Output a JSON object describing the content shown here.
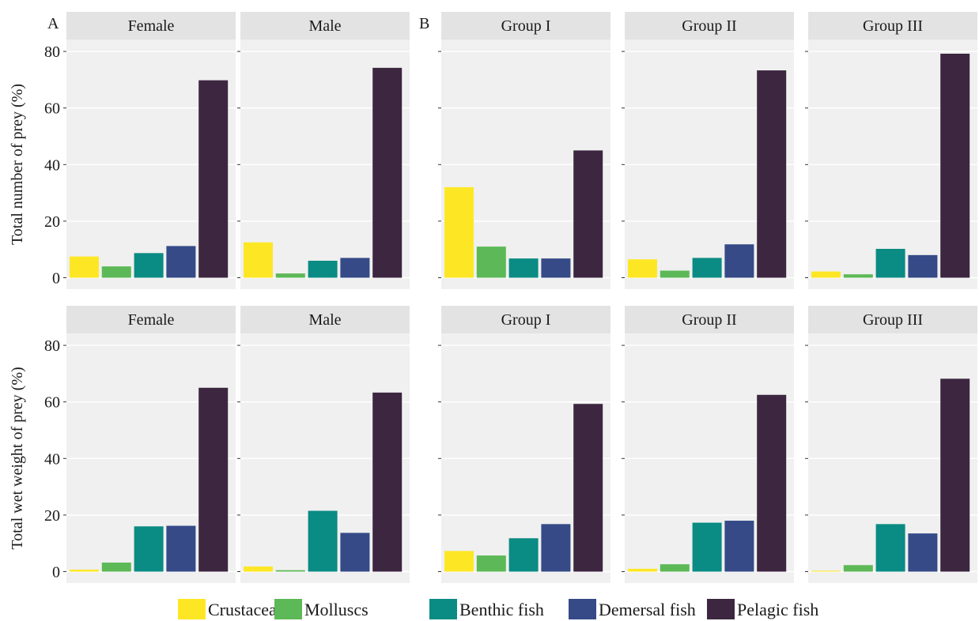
{
  "panel_labels": {
    "a": "A",
    "b": "B"
  },
  "colors": {
    "Crustaceans": "#FDE725",
    "Molluscs": "#5DB957",
    "Benthic fish": "#0A8B83",
    "Demersal fish": "#354A87",
    "Pelagic fish": "#3C2640",
    "panel_bg": "#EFF0EF",
    "strip_bg": "#E3E3E3",
    "grid": "#FFFFFF"
  },
  "legend": {
    "items": [
      "Crustaceans",
      "Molluscs",
      "Benthic fish",
      "Demersal fish",
      "Pelagic fish"
    ]
  },
  "chart_data": [
    {
      "type": "bar",
      "row": "number",
      "ylabel": "Total number of prey (%)",
      "ylim": [
        0,
        80
      ],
      "yticks": [
        0,
        20,
        40,
        60,
        80
      ],
      "categories": [
        "Crustaceans",
        "Molluscs",
        "Benthic fish",
        "Demersal fish",
        "Pelagic fish"
      ],
      "facets": [
        {
          "label": "Female",
          "group": "A",
          "values": [
            7.5,
            4.0,
            8.7,
            11.2,
            69.8
          ]
        },
        {
          "label": "Male",
          "group": "A",
          "values": [
            12.5,
            1.5,
            6.0,
            7.0,
            74.2
          ]
        },
        {
          "label": "Group I",
          "group": "B",
          "values": [
            32.0,
            11.0,
            6.8,
            6.8,
            45.0
          ]
        },
        {
          "label": "Group II",
          "group": "B",
          "values": [
            6.5,
            2.5,
            7.0,
            11.8,
            73.3
          ]
        },
        {
          "label": "Group III",
          "group": "B",
          "values": [
            2.2,
            1.2,
            10.2,
            8.0,
            79.2
          ]
        }
      ]
    },
    {
      "type": "bar",
      "row": "weight",
      "ylabel": "Total wet weight of prey (%)",
      "ylim": [
        0,
        80
      ],
      "yticks": [
        0,
        20,
        40,
        60,
        80
      ],
      "categories": [
        "Crustaceans",
        "Molluscs",
        "Benthic fish",
        "Demersal fish",
        "Pelagic fish"
      ],
      "facets": [
        {
          "label": "Female",
          "group": "A",
          "values": [
            0.7,
            3.2,
            16.0,
            16.2,
            65.0
          ]
        },
        {
          "label": "Male",
          "group": "A",
          "values": [
            1.8,
            0.5,
            21.5,
            13.7,
            63.3
          ]
        },
        {
          "label": "Group I",
          "group": "B",
          "values": [
            7.3,
            5.7,
            11.8,
            16.8,
            59.3
          ]
        },
        {
          "label": "Group II",
          "group": "B",
          "values": [
            1.0,
            2.6,
            17.3,
            18.0,
            62.5
          ]
        },
        {
          "label": "Group III",
          "group": "B",
          "values": [
            0.3,
            2.3,
            16.8,
            13.5,
            68.2
          ]
        }
      ]
    }
  ]
}
